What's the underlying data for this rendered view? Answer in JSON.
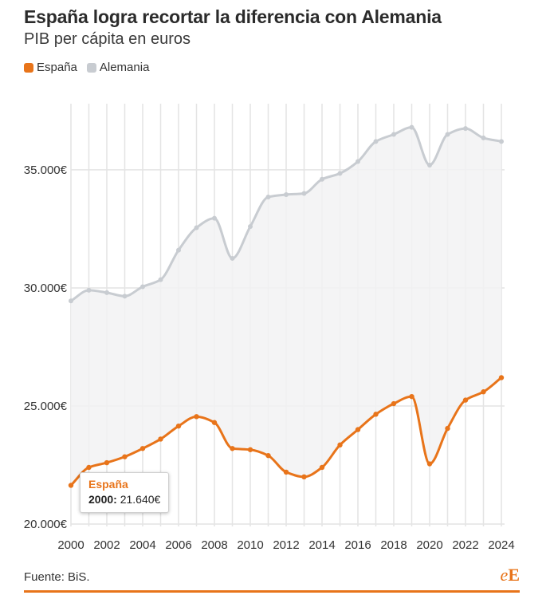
{
  "header": {
    "title": "España logra recortar la diferencia con Alemania",
    "subtitle": "PIB per cápita en euros"
  },
  "legend": {
    "items": [
      {
        "label": "España",
        "color": "#e8741a"
      },
      {
        "label": "Alemania",
        "color": "#c8ccd1"
      }
    ]
  },
  "tooltip": {
    "series": "España",
    "year_label": "2000:",
    "value_label": "21.640€"
  },
  "footer": {
    "source": "Fuente: BiS.",
    "logo_e1": "e",
    "logo_e2": "E",
    "accent": "#e8741a"
  },
  "chart_data": {
    "type": "line",
    "title": "España logra recortar la diferencia con Alemania",
    "subtitle": "PIB per cápita en euros",
    "xlabel": "",
    "ylabel": "",
    "x": [
      2000,
      2001,
      2002,
      2003,
      2004,
      2005,
      2006,
      2007,
      2008,
      2009,
      2010,
      2011,
      2012,
      2013,
      2014,
      2015,
      2016,
      2017,
      2018,
      2019,
      2020,
      2021,
      2022,
      2023,
      2024
    ],
    "x_ticks": [
      "2000",
      "2002",
      "2004",
      "2006",
      "2008",
      "2010",
      "2012",
      "2014",
      "2016",
      "2018",
      "2020",
      "2022",
      "2024"
    ],
    "y_ticks": [
      20000,
      25000,
      30000,
      35000
    ],
    "y_tick_labels": [
      "20.000€",
      "25.000€",
      "30.000€",
      "35.000€"
    ],
    "ylim": [
      19900,
      37800
    ],
    "grid": "vertical",
    "series": [
      {
        "name": "Alemania",
        "color": "#c8ccd1",
        "values": [
          29450,
          29900,
          29800,
          29650,
          30050,
          30350,
          31600,
          32550,
          32950,
          31250,
          32600,
          33850,
          33950,
          34000,
          34600,
          34850,
          35350,
          36200,
          36500,
          36800,
          35200,
          36500,
          36750,
          36350,
          36200
        ]
      },
      {
        "name": "España",
        "color": "#e8741a",
        "values": [
          21640,
          22400,
          22600,
          22850,
          23200,
          23600,
          24150,
          24550,
          24300,
          23200,
          23150,
          22900,
          22200,
          22000,
          22400,
          23350,
          24000,
          24650,
          25100,
          25400,
          22550,
          24050,
          25250,
          25600,
          26200
        ]
      }
    ],
    "fill_between": true,
    "highlight": {
      "series": "España",
      "x": 2000,
      "y": 21640
    }
  }
}
